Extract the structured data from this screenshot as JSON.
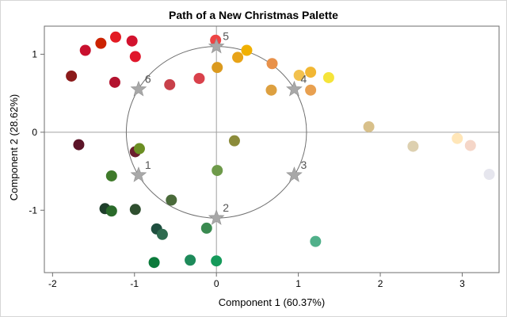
{
  "chart_data": {
    "type": "scatter",
    "title": "Path of a New Christmas Palette",
    "xlabel": "Component 1 (60.37%)",
    "ylabel": "Component 2 (28.62%)",
    "xlim": [
      -2.1,
      3.45
    ],
    "ylim": [
      -1.8,
      1.36
    ],
    "xticks": [
      -2,
      -1,
      0,
      1,
      2,
      3
    ],
    "yticks": [
      -1,
      0,
      1
    ],
    "reference_lines": {
      "x": 0,
      "y": 0
    },
    "circle": {
      "cx": 0,
      "cy": 0,
      "r": 1.1
    },
    "grid": false,
    "points": [
      {
        "x": -1.77,
        "y": 0.72,
        "color": "#8B1A1A"
      },
      {
        "x": -1.6,
        "y": 1.05,
        "color": "#C8102E"
      },
      {
        "x": -1.41,
        "y": 1.14,
        "color": "#CC2200"
      },
      {
        "x": -1.23,
        "y": 1.22,
        "color": "#E31B23"
      },
      {
        "x": -1.03,
        "y": 1.17,
        "color": "#D2122E"
      },
      {
        "x": -0.99,
        "y": 0.97,
        "color": "#E0162B"
      },
      {
        "x": -1.24,
        "y": 0.64,
        "color": "#B3132F"
      },
      {
        "x": -0.57,
        "y": 0.61,
        "color": "#C8404A"
      },
      {
        "x": -0.21,
        "y": 0.69,
        "color": "#D9414B"
      },
      {
        "x": -0.01,
        "y": 1.18,
        "color": "#EE4444"
      },
      {
        "x": 0.01,
        "y": 0.83,
        "color": "#DB9A1F"
      },
      {
        "x": 0.26,
        "y": 0.96,
        "color": "#E8A317"
      },
      {
        "x": 0.37,
        "y": 1.05,
        "color": "#F0B000"
      },
      {
        "x": 0.68,
        "y": 0.88,
        "color": "#E8914A"
      },
      {
        "x": 0.67,
        "y": 0.54,
        "color": "#DDA040"
      },
      {
        "x": 1.01,
        "y": 0.73,
        "color": "#F2C14E"
      },
      {
        "x": 1.15,
        "y": 0.77,
        "color": "#F2B733"
      },
      {
        "x": 1.37,
        "y": 0.7,
        "color": "#F5E43A"
      },
      {
        "x": 1.15,
        "y": 0.54,
        "color": "#E8A050"
      },
      {
        "x": 1.86,
        "y": 0.07,
        "color": "#D8C08A"
      },
      {
        "x": 2.4,
        "y": -0.18,
        "color": "#DDD0B0"
      },
      {
        "x": 2.94,
        "y": -0.08,
        "color": "#FFE6B8"
      },
      {
        "x": 3.1,
        "y": -0.17,
        "color": "#F5D6C8"
      },
      {
        "x": 3.33,
        "y": -0.54,
        "color": "#E6E6EE"
      },
      {
        "x": -1.68,
        "y": -0.16,
        "color": "#5C1428"
      },
      {
        "x": -0.99,
        "y": -0.25,
        "color": "#6B1E2E"
      },
      {
        "x": -0.94,
        "y": -0.21,
        "color": "#6B8E23"
      },
      {
        "x": 0.22,
        "y": -0.11,
        "color": "#8B8B3A"
      },
      {
        "x": 0.01,
        "y": -0.49,
        "color": "#6E9A4A"
      },
      {
        "x": -1.28,
        "y": -0.56,
        "color": "#3F7A2A"
      },
      {
        "x": -1.36,
        "y": -0.98,
        "color": "#1E3E2A"
      },
      {
        "x": -1.28,
        "y": -1.01,
        "color": "#2A6A2A"
      },
      {
        "x": -0.99,
        "y": -0.99,
        "color": "#2F4F2F"
      },
      {
        "x": -0.55,
        "y": -0.87,
        "color": "#4A6A3A"
      },
      {
        "x": -0.73,
        "y": -1.24,
        "color": "#1F4F3F"
      },
      {
        "x": -0.66,
        "y": -1.31,
        "color": "#2E6B4F"
      },
      {
        "x": -0.12,
        "y": -1.23,
        "color": "#3A8A50"
      },
      {
        "x": 1.21,
        "y": -1.4,
        "color": "#50B08A"
      },
      {
        "x": -0.76,
        "y": -1.67,
        "color": "#0B7A3B"
      },
      {
        "x": -0.32,
        "y": -1.64,
        "color": "#1E8A5A"
      },
      {
        "x": 0.0,
        "y": -1.65,
        "color": "#159A5A"
      }
    ],
    "stars": [
      {
        "label": "1",
        "x": -0.95,
        "y": -0.55
      },
      {
        "label": "2",
        "x": 0.0,
        "y": -1.1
      },
      {
        "label": "3",
        "x": 0.95,
        "y": -0.55
      },
      {
        "label": "4",
        "x": 0.95,
        "y": 0.55
      },
      {
        "label": "5",
        "x": 0.0,
        "y": 1.1
      },
      {
        "label": "6",
        "x": -0.95,
        "y": 0.55
      }
    ]
  }
}
